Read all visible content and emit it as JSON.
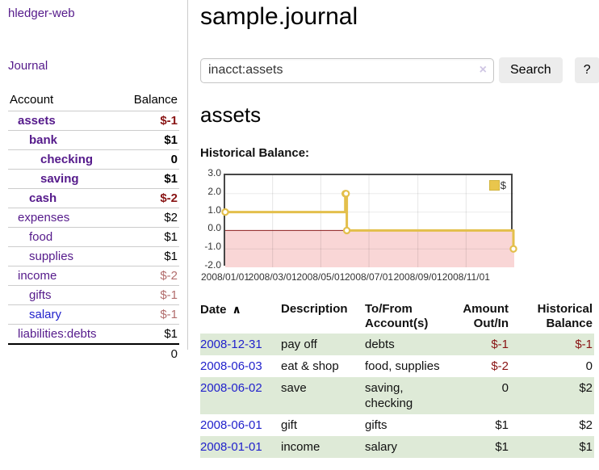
{
  "app": {
    "brand": "hledger-web",
    "nav_journal": "Journal"
  },
  "sidebar": {
    "header_account": "Account",
    "header_balance": "Balance",
    "accounts": [
      {
        "name": "assets",
        "level": 0,
        "bold": true,
        "name_style": "purple",
        "balance": "$-1",
        "balance_style": "neg-strong"
      },
      {
        "name": "bank",
        "level": 1,
        "bold": true,
        "name_style": "purple",
        "balance": "$1",
        "balance_style": "pos"
      },
      {
        "name": "checking",
        "level": 2,
        "bold": true,
        "name_style": "purple",
        "balance": "0",
        "balance_style": "pos"
      },
      {
        "name": "saving",
        "level": 2,
        "bold": true,
        "name_style": "purple",
        "balance": "$1",
        "balance_style": "pos"
      },
      {
        "name": "cash",
        "level": 1,
        "bold": true,
        "name_style": "purple",
        "balance": "$-2",
        "balance_style": "neg-strong"
      },
      {
        "name": "expenses",
        "level": 0,
        "bold": false,
        "name_style": "purple",
        "balance": "$2",
        "balance_style": "pos"
      },
      {
        "name": "food",
        "level": 1,
        "bold": false,
        "name_style": "purple",
        "balance": "$1",
        "balance_style": "pos"
      },
      {
        "name": "supplies",
        "level": 1,
        "bold": false,
        "name_style": "purple",
        "balance": "$1",
        "balance_style": "pos"
      },
      {
        "name": "income",
        "level": 0,
        "bold": false,
        "name_style": "purple",
        "balance": "$-2",
        "balance_style": "neg-soft"
      },
      {
        "name": "gifts",
        "level": 1,
        "bold": false,
        "name_style": "purple",
        "balance": "$-1",
        "balance_style": "neg-soft"
      },
      {
        "name": "salary",
        "level": 1,
        "bold": false,
        "name_style": "blue",
        "balance": "$-1",
        "balance_style": "neg-soft"
      },
      {
        "name": "liabilities:debts",
        "level": 0,
        "bold": false,
        "name_style": "purple",
        "balance": "$1",
        "balance_style": "pos"
      }
    ],
    "total": "0"
  },
  "header": {
    "title": "sample.journal"
  },
  "search": {
    "value": "inacct:assets",
    "clear_icon": "×",
    "button_label": "Search",
    "help_label": "?"
  },
  "account_page": {
    "title": "assets",
    "chart_label": "Historical Balance:"
  },
  "chart_data": {
    "type": "line",
    "step": true,
    "title": "Historical Balance:",
    "series": [
      {
        "name": "$",
        "color": "#E3BF4B",
        "points": [
          [
            "2008-01-01",
            1
          ],
          [
            "2008-06-01",
            2
          ],
          [
            "2008-06-02",
            2
          ],
          [
            "2008-06-03",
            0
          ],
          [
            "2008-12-31",
            -1
          ]
        ]
      }
    ],
    "x_domain": [
      "2008-01-01",
      "2009-01-01"
    ],
    "x_ticks": [
      "2008/01/01",
      "2008/03/01",
      "2008/05/01",
      "2008/07/01",
      "2008/09/01",
      "2008/11/01"
    ],
    "x_tick_dates": [
      "2008-01-01",
      "2008-03-01",
      "2008-05-01",
      "2008-07-01",
      "2008-09-01",
      "2008-11-01"
    ],
    "y_ticks": [
      "3.0",
      "2.0",
      "1.0",
      "0.0",
      "-1.0",
      "-2.0"
    ],
    "ylim": [
      -2,
      3
    ],
    "grid": true,
    "legend": {
      "label": "$",
      "position": "top-right"
    },
    "negative_region_color": "#F9D6D6",
    "zero_line_color": "#8B1C1C"
  },
  "register": {
    "columns": [
      {
        "line1": "Date",
        "line2": "",
        "align": "left",
        "sort_icon": "∧"
      },
      {
        "line1": "Description",
        "line2": "",
        "align": "left"
      },
      {
        "line1": "To/From",
        "line2": "Account(s)",
        "align": "left"
      },
      {
        "line1": "Amount",
        "line2": "Out/In",
        "align": "right"
      },
      {
        "line1": "Historical",
        "line2": "Balance",
        "align": "right"
      }
    ],
    "rows": [
      {
        "date": "2008-12-31",
        "description": "pay off",
        "accounts": "debts",
        "amount": "$-1",
        "amount_neg": true,
        "balance": "$-1",
        "balance_neg": true
      },
      {
        "date": "2008-06-03",
        "description": "eat & shop",
        "accounts": "food, supplies",
        "amount": "$-2",
        "amount_neg": true,
        "balance": "0",
        "balance_neg": false
      },
      {
        "date": "2008-06-02",
        "description": "save",
        "accounts": "saving, checking",
        "amount": "0",
        "amount_neg": false,
        "balance": "$2",
        "balance_neg": false
      },
      {
        "date": "2008-06-01",
        "description": "gift",
        "accounts": "gifts",
        "amount": "$1",
        "amount_neg": false,
        "balance": "$2",
        "balance_neg": false
      },
      {
        "date": "2008-01-01",
        "description": "income",
        "accounts": "salary",
        "amount": "$1",
        "amount_neg": false,
        "balance": "$1",
        "balance_neg": false
      }
    ]
  }
}
